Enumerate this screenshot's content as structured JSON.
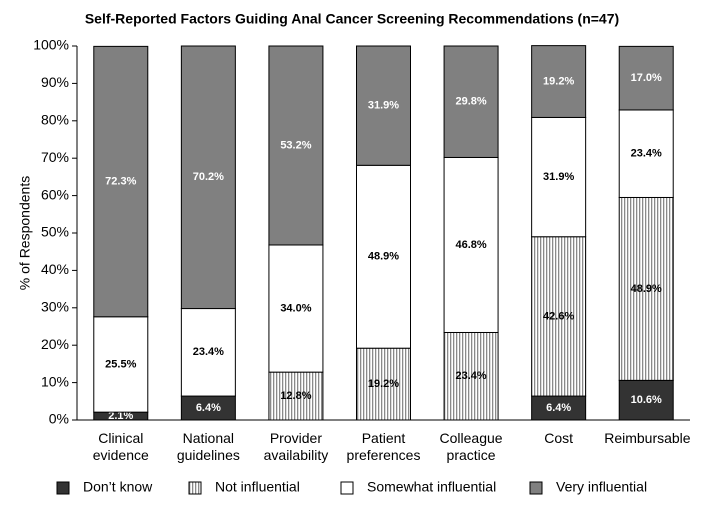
{
  "chart_data": {
    "type": "stacked_bar",
    "title": "Self-Reported Factors Guiding Anal Cancer Screening Recommendations (n=47)",
    "y_label": "% of Respondents",
    "categories": [
      "Clinical evidence",
      "National guidelines",
      "Provider availability",
      "Patient preferences",
      "Colleague practice",
      "Cost",
      "Reimbursable"
    ],
    "series": [
      {
        "name": "Don’t know",
        "color": "#333333",
        "values": [
          2.1,
          6.4,
          null,
          null,
          null,
          6.4,
          10.6
        ],
        "value_labels": [
          "2.1%",
          "6.4%",
          null,
          null,
          null,
          "6.4%",
          "10.6%"
        ]
      },
      {
        "name": "Not influential",
        "color": "#9a9a9a",
        "pattern": "vertical-stripes",
        "values": [
          null,
          null,
          12.8,
          19.2,
          23.4,
          42.6,
          48.9
        ],
        "value_labels": [
          null,
          null,
          "12.8%",
          "19.2%",
          "23.4%",
          "42.6%",
          "48.9%"
        ]
      },
      {
        "name": "Somewhat influential",
        "color": "#ffffff",
        "values": [
          25.5,
          23.4,
          34.0,
          48.9,
          46.8,
          31.9,
          23.4
        ],
        "value_labels": [
          "25.5%",
          "23.4%",
          "34.0%",
          "48.9%",
          "46.8%",
          "31.9%",
          "23.4%"
        ]
      },
      {
        "name": "Very influential",
        "color": "#808080",
        "values": [
          72.3,
          70.2,
          53.2,
          31.9,
          29.8,
          19.2,
          17.0
        ],
        "value_labels": [
          "72.3%",
          "70.2%",
          "53.2%",
          "31.9%",
          "29.8%",
          "19.2%",
          "17.0%"
        ]
      }
    ],
    "ylim": [
      0,
      100
    ],
    "yticks": [
      {
        "value": 0,
        "label": "0%"
      },
      {
        "value": 10,
        "label": "10%"
      },
      {
        "value": 20,
        "label": "20%"
      },
      {
        "value": 30,
        "label": "30%"
      },
      {
        "value": 40,
        "label": "40%"
      },
      {
        "value": 50,
        "label": "50%"
      },
      {
        "value": 60,
        "label": "60%"
      },
      {
        "value": 70,
        "label": "70%"
      },
      {
        "value": 80,
        "label": "80%"
      },
      {
        "value": 90,
        "label": "90%"
      },
      {
        "value": 100,
        "label": "100%"
      }
    ],
    "grid": false,
    "legend": "bottom"
  }
}
